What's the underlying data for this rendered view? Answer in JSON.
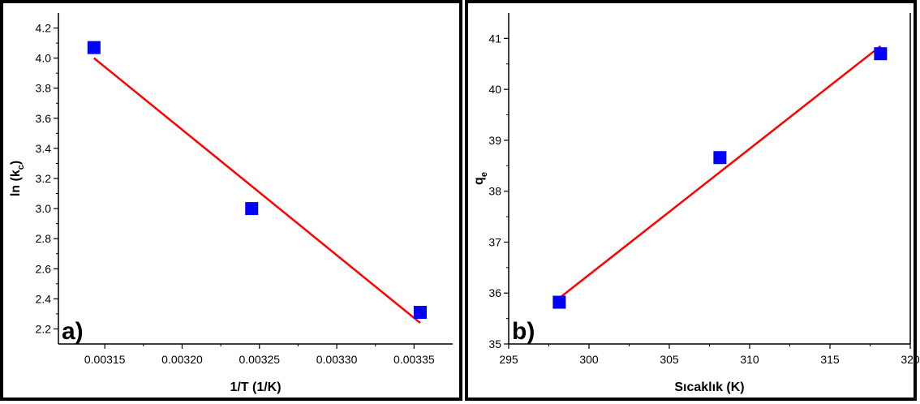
{
  "chart_data": [
    {
      "type": "scatter",
      "panel_label": "a)",
      "xlabel": "1/T (1/K)",
      "ylabel_main": "ln (k",
      "ylabel_sub": "c",
      "ylabel_close": ")",
      "xlim": [
        0.00312,
        0.003375
      ],
      "ylim": [
        2.1,
        4.3
      ],
      "xticks": [
        0.00315,
        0.0032,
        0.00325,
        0.0033,
        0.00335
      ],
      "xtick_labels": [
        "0.00315",
        "0.00320",
        "0.00325",
        "0.00330",
        "0.00335"
      ],
      "yticks": [
        2.2,
        2.4,
        2.6,
        2.8,
        3.0,
        3.2,
        3.4,
        3.6,
        3.8,
        4.0,
        4.2
      ],
      "ytick_labels": [
        "2.2",
        "2.4",
        "2.6",
        "2.8",
        "3.0",
        "3.2",
        "3.4",
        "3.6",
        "3.8",
        "4.0",
        "4.2"
      ],
      "points": [
        {
          "x": 0.003143,
          "y": 4.07
        },
        {
          "x": 0.003245,
          "y": 3.0
        },
        {
          "x": 0.003354,
          "y": 2.31
        }
      ],
      "fit_line": [
        {
          "x": 0.003143,
          "y": 4.0
        },
        {
          "x": 0.003354,
          "y": 2.24
        }
      ],
      "marker_color": "#0000ff",
      "line_color": "#ff0000",
      "grid": false
    },
    {
      "type": "scatter",
      "panel_label": "b)",
      "xlabel": "Sıcaklık (K)",
      "ylabel_main": "q",
      "ylabel_sub": "e",
      "ylabel_close": "",
      "xlim": [
        295,
        320
      ],
      "ylim": [
        35,
        41.5
      ],
      "xticks": [
        295,
        300,
        305,
        310,
        315,
        320
      ],
      "xtick_labels": [
        "295",
        "300",
        "305",
        "310",
        "315",
        "320"
      ],
      "yticks": [
        35,
        36,
        37,
        38,
        39,
        40,
        41
      ],
      "ytick_labels": [
        "35",
        "36",
        "37",
        "38",
        "39",
        "40",
        "41"
      ],
      "points": [
        {
          "x": 298.15,
          "y": 35.82
        },
        {
          "x": 308.15,
          "y": 38.66
        },
        {
          "x": 318.15,
          "y": 40.7
        }
      ],
      "fit_line": [
        {
          "x": 298.15,
          "y": 35.9
        },
        {
          "x": 318.15,
          "y": 40.85
        }
      ],
      "marker_color": "#0000ff",
      "line_color": "#ff0000",
      "grid": false
    }
  ]
}
